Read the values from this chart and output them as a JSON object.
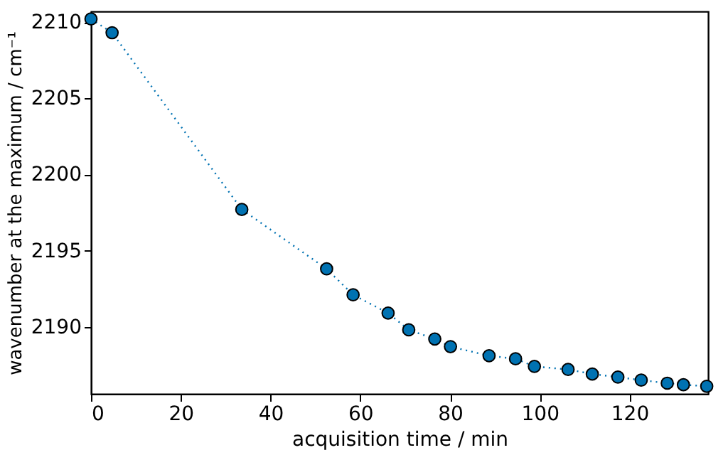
{
  "chart_data": {
    "type": "line",
    "xlabel": "acquisition time / min",
    "ylabel": "wavenumber at the maximum / cm⁻¹",
    "x": [
      0,
      4.7,
      33.6,
      52.5,
      58.4,
      66.2,
      70.8,
      76.6,
      80.1,
      88.7,
      94.6,
      98.8,
      106.3,
      111.7,
      117.4,
      122.6,
      128.4,
      132.0,
      137.2
    ],
    "series": [
      {
        "color": "#0072b2",
        "values": [
          2210.2,
          2209.3,
          2197.7,
          2193.8,
          2192.1,
          2190.9,
          2189.8,
          2189.2,
          2188.7,
          2188.1,
          2187.9,
          2187.4,
          2187.2,
          2186.9,
          2186.7,
          2186.5,
          2186.3,
          2186.2,
          2186.1
        ]
      }
    ],
    "xlim": [
      0,
      137.5
    ],
    "xticks": [
      0,
      20,
      40,
      60,
      80,
      100,
      120
    ],
    "ylim": [
      2185.6,
      2210.7
    ],
    "yticks": [
      2190,
      2195,
      2200,
      2205,
      2210
    ],
    "marker": "circle",
    "line_style": "dotted",
    "grid": false
  }
}
